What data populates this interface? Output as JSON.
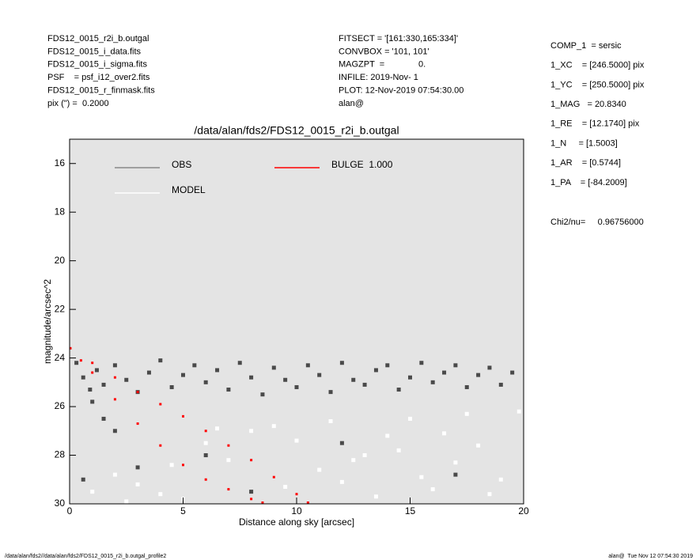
{
  "chart_data": {
    "type": "scatter",
    "title": "/data/alan/fds2/FDS12_0015_r2i_b.outgal",
    "xlabel": "Distance along sky [arcsec]",
    "ylabel": "magnitude/arcsec^2",
    "xlim": [
      0,
      20
    ],
    "xticks": [
      0,
      5,
      10,
      15,
      20
    ],
    "ylim": [
      30,
      15
    ],
    "yticks": [
      16,
      18,
      20,
      22,
      24,
      26,
      28,
      30
    ],
    "background": "#e4e4e4",
    "header_left": [
      "FDS12_0015_r2i_b.outgal",
      "FDS12_0015_i_data.fits",
      "FDS12_0015_i_sigma.fits",
      "PSF    = psf_i12_over2.fits",
      "FDS12_0015_r_finmask.fits",
      "pix (\") =  0.2000"
    ],
    "header_middle": [
      "FITSECT = '[161:330,165:334]'",
      "CONVBOX = '101, 101'",
      "MAGZPT  =              0.",
      "INFILE: 2019-Nov- 1",
      "PLOT: 12-Nov-2019 07:54:30.00",
      "alan@"
    ],
    "params": [
      "COMP_1  = sersic",
      "1_XC    = [246.5000] pix",
      "1_YC    = [250.5000] pix",
      "1_MAG   = 20.8340",
      "1_RE    = [12.1740] pix",
      "1_N     = [1.5003]",
      "1_AR    = [0.5744]",
      "1_PA    = [-84.2009]"
    ],
    "chi2": "Chi2/nu=     0.96756000",
    "footer_left": "/data/alan/fds2//data/alan/fds2/FDS12_0015_r2i_b.outgal_profile2",
    "footer_right": "alan@  Tue Nov 12 07:54:30 2019",
    "series": [
      {
        "name": "OBS",
        "color": "#4a4a4a",
        "x": [
          0.3,
          0.6,
          0.9,
          1.2,
          1.5,
          2,
          2.5,
          3,
          3.5,
          4,
          4.5,
          5,
          5.5,
          6,
          6.5,
          7,
          7.5,
          8,
          8.5,
          9,
          9.5,
          10,
          10.5,
          11,
          11.5,
          12,
          12.5,
          13,
          13.5,
          14,
          14.5,
          15,
          15.5,
          16,
          16.5,
          17,
          17.5,
          18,
          18.5,
          19,
          19.5,
          1,
          1.5,
          2,
          0.6,
          3,
          6,
          8,
          12,
          17
        ],
        "y": [
          24.2,
          24.8,
          25.3,
          24.5,
          25.1,
          24.3,
          24.9,
          25.4,
          24.6,
          24.1,
          25.2,
          24.7,
          24.3,
          25.0,
          24.5,
          25.3,
          24.2,
          24.8,
          25.5,
          24.4,
          24.9,
          25.2,
          24.3,
          24.7,
          25.4,
          24.2,
          24.9,
          25.1,
          24.5,
          24.3,
          25.3,
          24.8,
          24.2,
          25.0,
          24.6,
          24.3,
          25.2,
          24.7,
          24.4,
          25.1,
          24.6,
          25.8,
          26.5,
          27,
          29,
          28.5,
          28,
          29.5,
          27.5,
          28.8
        ]
      },
      {
        "name": "MODEL",
        "color": "#ffffff",
        "x": [
          1,
          2,
          3,
          4,
          5,
          6,
          7,
          8,
          9,
          10,
          11,
          12,
          13,
          14,
          15,
          16,
          17,
          18,
          19,
          19.8,
          2.5,
          4.5,
          6.5,
          9.5,
          11.5,
          13.5,
          15.5,
          17.5,
          18.5,
          12.5,
          14.5,
          16.5
        ],
        "y": [
          29.5,
          28.8,
          29.2,
          29.6,
          29.8,
          27.5,
          28.2,
          27.0,
          26.8,
          27.4,
          28.6,
          29.1,
          28.0,
          27.2,
          26.5,
          29.4,
          28.3,
          27.6,
          29.0,
          26.2,
          29.9,
          28.4,
          26.9,
          29.3,
          26.6,
          29.7,
          28.9,
          26.3,
          29.6,
          28.2,
          27.8,
          27.1
        ]
      },
      {
        "name": "BULGE  1.000",
        "color": "#ff0000",
        "x": [
          0,
          1,
          2,
          3,
          4,
          5,
          6,
          7,
          8,
          9,
          10,
          10.5,
          0.5,
          1,
          2,
          3,
          4,
          5,
          6,
          7,
          8,
          8.5
        ],
        "y": [
          23.6,
          24.2,
          24.8,
          25.4,
          25.9,
          26.4,
          27,
          27.6,
          28.2,
          28.9,
          29.6,
          30,
          24.1,
          24.6,
          25.7,
          26.7,
          27.6,
          28.4,
          29,
          29.4,
          29.8,
          30
        ]
      }
    ]
  }
}
